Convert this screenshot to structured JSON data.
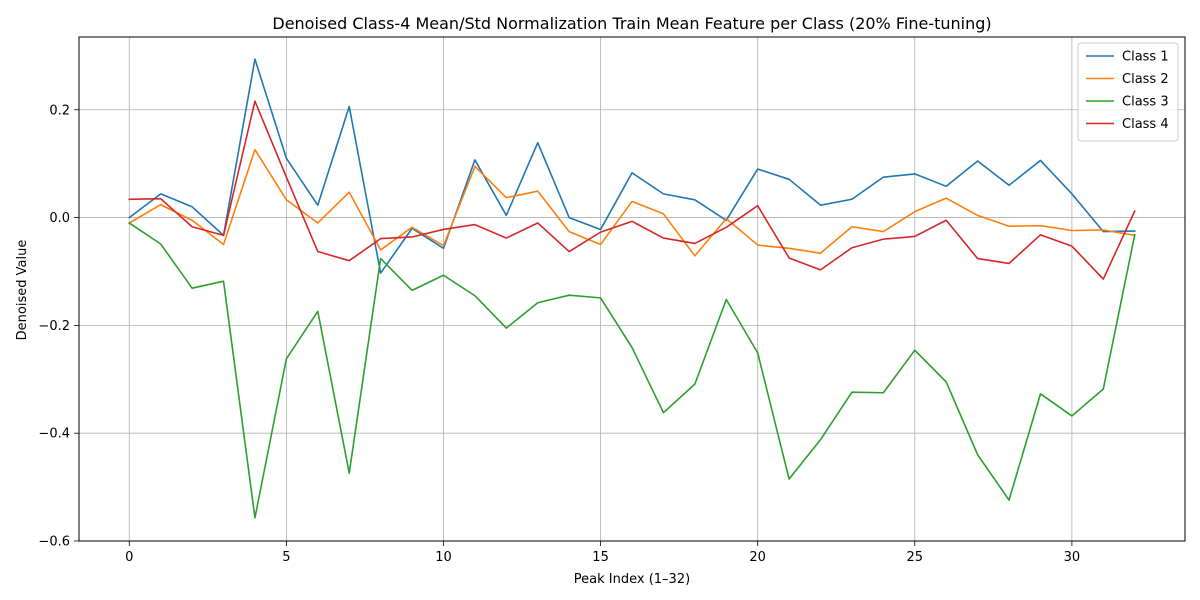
{
  "chart_data": {
    "type": "line",
    "title": "Denoised Class-4 Mean/Std Normalization Train Mean Feature per Class (20% Fine-tuning)",
    "xlabel": "Peak Index (1–32)",
    "ylabel": "Denoised Value",
    "xlim": [
      -1.6,
      33.6
    ],
    "ylim": [
      -0.6,
      0.335
    ],
    "xticks": [
      0,
      5,
      10,
      15,
      20,
      25,
      30
    ],
    "yticks": [
      -0.6,
      -0.4,
      -0.2,
      0.0,
      0.2
    ],
    "ytick_labels": [
      "−0.6",
      "−0.4",
      "−0.2",
      "0.0",
      "0.2"
    ],
    "grid": true,
    "legend_position": "top-right",
    "x": [
      0,
      1,
      2,
      3,
      4,
      5,
      6,
      7,
      8,
      9,
      10,
      11,
      12,
      13,
      14,
      15,
      16,
      17,
      18,
      19,
      20,
      21,
      22,
      23,
      24,
      25,
      26,
      27,
      28,
      29,
      30,
      31,
      32
    ],
    "series": [
      {
        "name": "Class 1",
        "color": "#1f77b4",
        "values": [
          0.0,
          0.044,
          0.02,
          -0.033,
          0.294,
          0.11,
          0.023,
          0.206,
          -0.103,
          -0.02,
          -0.057,
          0.107,
          0.004,
          0.139,
          0.0,
          -0.022,
          0.083,
          0.044,
          0.033,
          -0.005,
          0.09,
          0.071,
          0.023,
          0.034,
          0.075,
          0.081,
          0.058,
          0.105,
          0.06,
          0.106,
          0.044,
          -0.026,
          -0.025
        ]
      },
      {
        "name": "Class 2",
        "color": "#ff7f0e",
        "values": [
          -0.01,
          0.024,
          -0.005,
          -0.05,
          0.126,
          0.033,
          -0.01,
          0.047,
          -0.06,
          -0.018,
          -0.052,
          0.095,
          0.037,
          0.049,
          -0.026,
          -0.05,
          0.03,
          0.007,
          -0.071,
          -0.002,
          -0.051,
          -0.057,
          -0.066,
          -0.017,
          -0.026,
          0.011,
          0.036,
          0.004,
          -0.016,
          -0.015,
          -0.024,
          -0.023,
          -0.033
        ]
      },
      {
        "name": "Class 3",
        "color": "#2ca02c",
        "values": [
          -0.01,
          -0.049,
          -0.131,
          -0.118,
          -0.557,
          -0.262,
          -0.174,
          -0.474,
          -0.076,
          -0.135,
          -0.107,
          -0.145,
          -0.205,
          -0.158,
          -0.144,
          -0.149,
          -0.241,
          -0.362,
          -0.309,
          -0.152,
          -0.251,
          -0.485,
          -0.412,
          -0.324,
          -0.325,
          -0.246,
          -0.305,
          -0.44,
          -0.524,
          -0.327,
          -0.368,
          -0.318,
          -0.032
        ]
      },
      {
        "name": "Class 4",
        "color": "#d62728",
        "values": [
          0.034,
          0.035,
          -0.017,
          -0.033,
          0.216,
          0.075,
          -0.063,
          -0.08,
          -0.039,
          -0.036,
          -0.022,
          -0.013,
          -0.038,
          -0.01,
          -0.063,
          -0.027,
          -0.007,
          -0.038,
          -0.048,
          -0.018,
          0.022,
          -0.075,
          -0.097,
          -0.056,
          -0.04,
          -0.035,
          -0.005,
          -0.076,
          -0.085,
          -0.032,
          -0.053,
          -0.114,
          0.012
        ]
      }
    ]
  }
}
